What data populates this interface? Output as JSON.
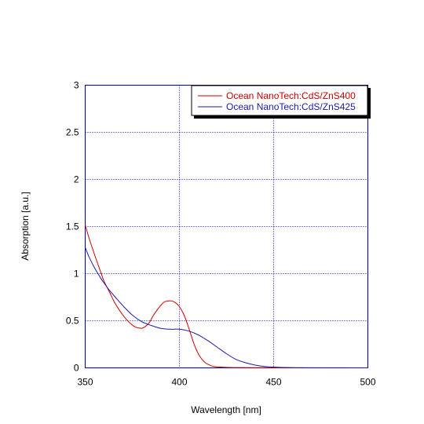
{
  "chart_data": {
    "type": "line",
    "title": "",
    "xlabel": "Wavelength [nm]",
    "ylabel": "Absorption [a.u.]",
    "xlim": [
      350,
      500
    ],
    "ylim": [
      0,
      3
    ],
    "x_ticks": [
      350,
      400,
      450,
      500
    ],
    "y_ticks": [
      0,
      0.5,
      1,
      1.5,
      2,
      2.5,
      3
    ],
    "x_tick_labels": [
      "350",
      "400",
      "450",
      "500"
    ],
    "y_tick_labels": [
      "0",
      "0.5",
      "1",
      "1.5",
      "2",
      "2.5",
      "3"
    ],
    "grid": true,
    "legend_position": "top-right",
    "series": [
      {
        "name": "Ocean NanoTech:CdS/ZnS400",
        "color": "#cc0000",
        "x": [
          350,
          352,
          355,
          358,
          360,
          363,
          366,
          370,
          373,
          376,
          378,
          380,
          382,
          384,
          386,
          388,
          390,
          392,
          394,
          396,
          398,
          400,
          402,
          404,
          406,
          408,
          410,
          412,
          414,
          416,
          418,
          420,
          425,
          430,
          440,
          460,
          500
        ],
        "y": [
          1.52,
          1.38,
          1.2,
          1.03,
          0.92,
          0.8,
          0.68,
          0.56,
          0.49,
          0.44,
          0.425,
          0.42,
          0.44,
          0.48,
          0.55,
          0.61,
          0.66,
          0.7,
          0.71,
          0.71,
          0.69,
          0.65,
          0.58,
          0.48,
          0.36,
          0.24,
          0.15,
          0.09,
          0.05,
          0.03,
          0.015,
          0.01,
          0.005,
          0.003,
          0.002,
          0.001,
          0.0
        ]
      },
      {
        "name": "Ocean NanoTech:CdS/ZnS425",
        "color": "#1a1ab0",
        "x": [
          350,
          352,
          355,
          358,
          360,
          363,
          366,
          370,
          375,
          380,
          385,
          390,
          395,
          400,
          405,
          410,
          415,
          420,
          425,
          430,
          435,
          440,
          445,
          450,
          455,
          460,
          470,
          480,
          500
        ],
        "y": [
          1.28,
          1.18,
          1.06,
          0.96,
          0.9,
          0.82,
          0.75,
          0.66,
          0.56,
          0.49,
          0.45,
          0.42,
          0.41,
          0.41,
          0.39,
          0.35,
          0.29,
          0.22,
          0.15,
          0.09,
          0.055,
          0.03,
          0.015,
          0.008,
          0.004,
          0.002,
          0.001,
          0.001,
          0.0
        ]
      }
    ]
  }
}
